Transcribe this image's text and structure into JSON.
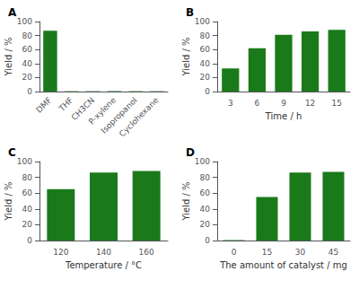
{
  "chart_data": [
    {
      "type": "bar",
      "title": "A",
      "categories": [
        "DMF",
        "THF",
        "CH3CN",
        "P-xylene",
        "Isopropanol",
        "Cyclohexane"
      ],
      "values": [
        87,
        0.5,
        0.5,
        0.5,
        0.5,
        0.5
      ],
      "ylabel": "Yield / %",
      "color": "#1a7a1a",
      "ylim": [
        0,
        100
      ],
      "yticks": [
        0,
        20,
        40,
        60,
        80,
        100
      ],
      "grid": false
    },
    {
      "type": "bar",
      "title": "B",
      "categories": [
        "3",
        "6",
        "9",
        "12",
        "15"
      ],
      "values": [
        33,
        62,
        81,
        86,
        88
      ],
      "xlabel": "Time / h",
      "ylabel": "Yield / %",
      "color": "#1a7a1a",
      "ylim": [
        0,
        100
      ],
      "yticks": [
        0,
        20,
        40,
        60,
        80,
        100
      ],
      "grid": false
    },
    {
      "type": "bar",
      "title": "C",
      "categories": [
        "120",
        "140",
        "160"
      ],
      "values": [
        65,
        86,
        88
      ],
      "xlabel": "Temperature / °C",
      "ylabel": "Yield / %",
      "color": "#1a7a1a",
      "ylim": [
        0,
        100
      ],
      "yticks": [
        0,
        20,
        40,
        60,
        80,
        100
      ],
      "grid": false
    },
    {
      "type": "bar",
      "title": "D",
      "categories": [
        "0",
        "15",
        "30",
        "45"
      ],
      "values": [
        0.5,
        55,
        86,
        87
      ],
      "xlabel": "The amount of catalyst / mg",
      "ylabel": "Yield / %",
      "color": "#1a7a1a",
      "ylim": [
        0,
        100
      ],
      "yticks": [
        0,
        20,
        40,
        60,
        80,
        100
      ],
      "grid": false
    }
  ]
}
